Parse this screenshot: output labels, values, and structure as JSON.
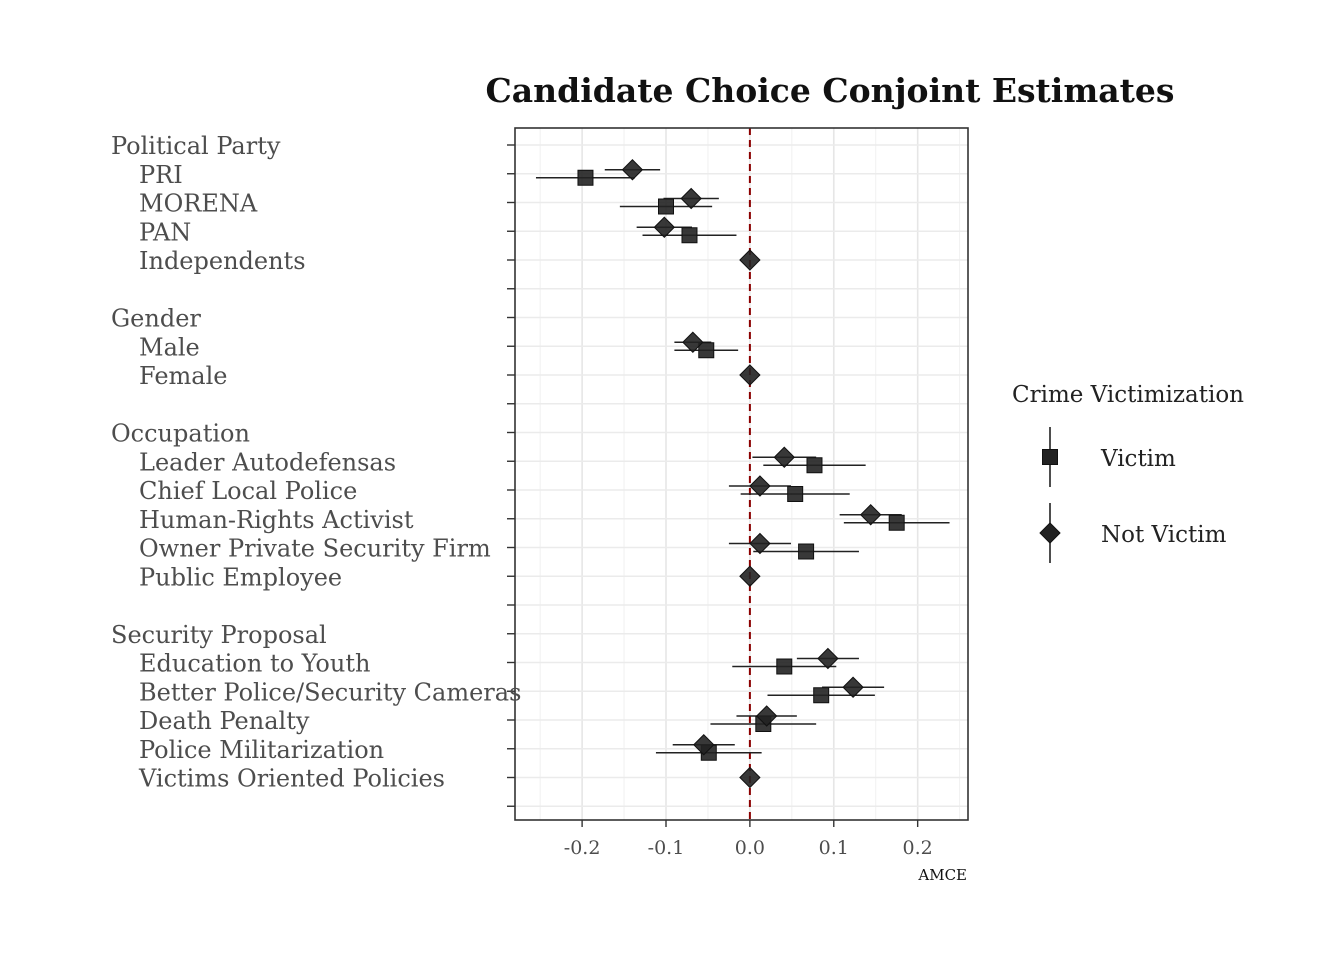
{
  "chart_data": {
    "type": "scatter",
    "title": "Candidate Choice Conjoint Estimates",
    "xlabel": "AMCE",
    "xlim": [
      -0.28,
      0.26
    ],
    "x_ticks": [
      "-0.2",
      "-0.1",
      "0.0",
      "0.1",
      "0.2"
    ],
    "x_tick_values": [
      -0.2,
      -0.1,
      0.0,
      0.1,
      0.2
    ],
    "reference_line": 0.0,
    "reference_color": "#8b0000",
    "grid": true,
    "legend": {
      "title": "Crime Victimization",
      "placement": "right",
      "entries": [
        "Victim",
        "Not Victim"
      ]
    },
    "series": [
      {
        "name": "Victim",
        "marker": "square",
        "color": "#222222"
      },
      {
        "name": "Not Victim",
        "marker": "diamond",
        "color": "#222222"
      }
    ],
    "rows": [
      {
        "label": "Political Party",
        "header": true
      },
      {
        "label": "PRI",
        "victim": [
          -0.196,
          -0.255,
          -0.137
        ],
        "not_victim": [
          -0.14,
          -0.173,
          -0.107
        ]
      },
      {
        "label": "MORENA",
        "victim": [
          -0.1,
          -0.155,
          -0.045
        ],
        "not_victim": [
          -0.07,
          -0.103,
          -0.037
        ]
      },
      {
        "label": "PAN",
        "victim": [
          -0.072,
          -0.128,
          -0.016
        ],
        "not_victim": [
          -0.102,
          -0.135,
          -0.069
        ]
      },
      {
        "label": "Independents",
        "victim": [
          0.0,
          0.0,
          0.0
        ],
        "not_victim": [
          0.0,
          0.0,
          0.0
        ]
      },
      {
        "label": "",
        "blank": true
      },
      {
        "label": "Gender",
        "header": true
      },
      {
        "label": "Male",
        "victim": [
          -0.052,
          -0.09,
          -0.014
        ],
        "not_victim": [
          -0.068,
          -0.09,
          -0.046
        ]
      },
      {
        "label": "Female",
        "victim": [
          0.0,
          0.0,
          0.0
        ],
        "not_victim": [
          0.0,
          0.0,
          0.0
        ]
      },
      {
        "label": "",
        "blank": true
      },
      {
        "label": "Occupation",
        "header": true
      },
      {
        "label": "Leader Autodefensas",
        "victim": [
          0.077,
          0.016,
          0.138
        ],
        "not_victim": [
          0.041,
          0.003,
          0.079
        ]
      },
      {
        "label": "Chief Local Police",
        "victim": [
          0.054,
          -0.011,
          0.119
        ],
        "not_victim": [
          0.012,
          -0.025,
          0.049
        ]
      },
      {
        "label": "Human-Rights Activist",
        "victim": [
          0.175,
          0.112,
          0.238
        ],
        "not_victim": [
          0.144,
          0.107,
          0.181
        ]
      },
      {
        "label": "Owner Private  Security Firm",
        "victim": [
          0.067,
          0.004,
          0.13
        ],
        "not_victim": [
          0.012,
          -0.025,
          0.049
        ]
      },
      {
        "label": "Public Employee",
        "victim": [
          0.0,
          0.0,
          0.0
        ],
        "not_victim": [
          0.0,
          0.0,
          0.0
        ]
      },
      {
        "label": "",
        "blank": true
      },
      {
        "label": "Security Proposal",
        "header": true
      },
      {
        "label": "Education to Youth",
        "victim": [
          0.041,
          -0.021,
          0.103
        ],
        "not_victim": [
          0.093,
          0.056,
          0.13
        ]
      },
      {
        "label": "Better Police/Security Cameras",
        "victim": [
          0.085,
          0.021,
          0.149
        ],
        "not_victim": [
          0.123,
          0.086,
          0.16
        ]
      },
      {
        "label": "Death Penalty",
        "victim": [
          0.016,
          -0.047,
          0.079
        ],
        "not_victim": [
          0.02,
          -0.016,
          0.056
        ]
      },
      {
        "label": "Police Militarization",
        "victim": [
          -0.049,
          -0.112,
          0.014
        ],
        "not_victim": [
          -0.055,
          -0.092,
          -0.018
        ]
      },
      {
        "label": "Victims Oriented Policies",
        "victim": [
          0.0,
          0.0,
          0.0
        ],
        "not_victim": [
          0.0,
          0.0,
          0.0
        ]
      },
      {
        "label": "",
        "blank": true
      }
    ]
  }
}
